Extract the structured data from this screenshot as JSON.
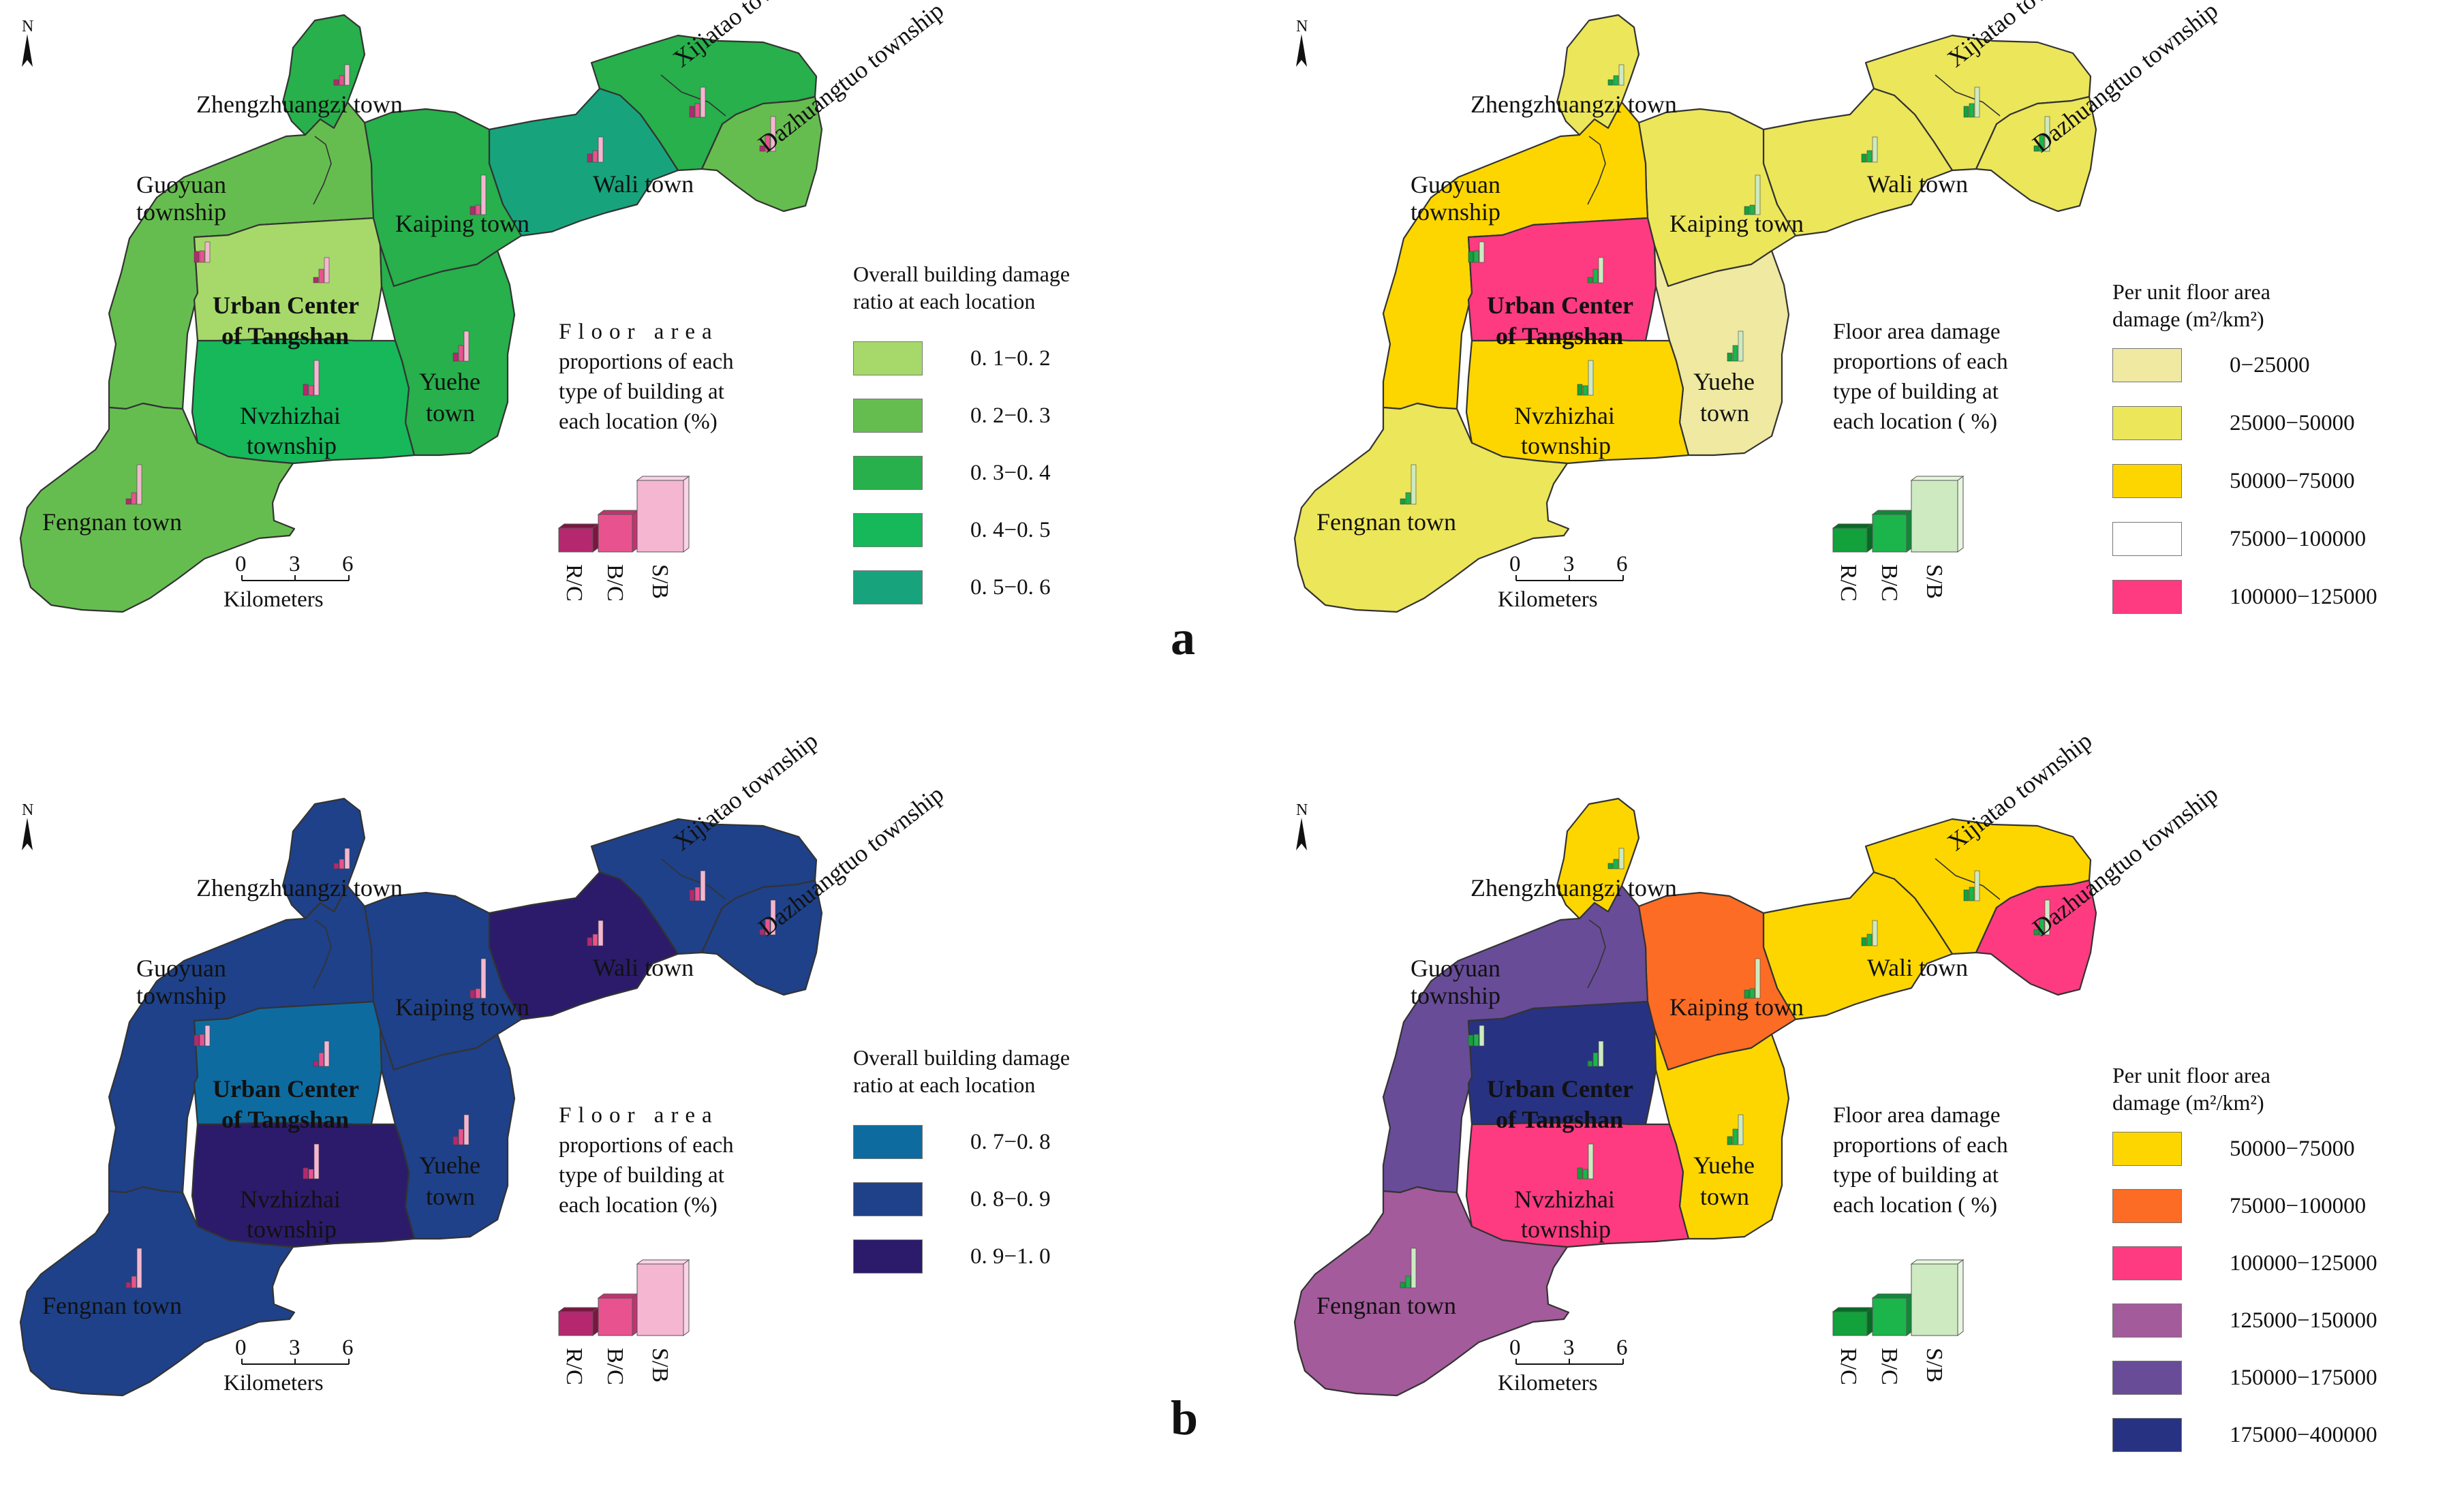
{
  "figure": {
    "panel_letters": [
      "a",
      "b"
    ],
    "north_label": "N",
    "scale": {
      "ticks": [
        "0",
        "3",
        "6"
      ],
      "unit": "Kilometers"
    },
    "place_names": {
      "zhengzhuangzi": "Zhengzhuangzi town",
      "xijiatao": "Xijiatao township",
      "guoyuan_1": "Guoyuan",
      "guoyuan_2": "township",
      "kaiping": "Kaiping town",
      "wali": "Wali town",
      "dazhuangtuo": "Dazhuangtuo township",
      "urban_1": "Urban Center",
      "urban_2": "of Tangshan",
      "yuehe_1": "Yuehe",
      "yuehe_2": "town",
      "nvzhizhai_1": "Nvzhizhai",
      "nvzhizhai_2": "township",
      "fengnan": "Fengnan town"
    },
    "bar_labels": [
      "R/C",
      "B/C",
      "S/B"
    ]
  },
  "panels": {
    "a_left": {
      "legend_title": [
        "Overall building damage",
        "ratio at each location"
      ],
      "bar_title": [
        "Floor area",
        "proportions of each",
        "type of building at",
        "each location (%)"
      ],
      "legend": [
        {
          "label": "0. 1−0. 2",
          "color": "#a6d96a"
        },
        {
          "label": "0. 2−0. 3",
          "color": "#66bd4f"
        },
        {
          "label": "0. 3−0. 4",
          "color": "#27b04b"
        },
        {
          "label": "0. 4−0. 5",
          "color": "#16b85a"
        },
        {
          "label": "0. 5−0. 6",
          "color": "#17a47c"
        }
      ],
      "fills": {
        "zhengzhuangzi": "#27b04b",
        "xijiatao": "#27b04b",
        "dazhuangtuo": "#66bd4f",
        "wali": "#17a47c",
        "kaiping": "#27b04b",
        "guoyuan": "#66bd4f",
        "urban": "#a6d96a",
        "yuehe": "#27b04b",
        "nvzhizhai": "#16b85a",
        "fengnan": "#66bd4f"
      }
    },
    "a_right": {
      "legend_title": [
        "Per unit floor area",
        "damage (m²/km²)"
      ],
      "bar_title": [
        "Floor area damage",
        "proportions of each",
        "type of building at",
        "each location ( %)"
      ],
      "legend": [
        {
          "label": "0−25000",
          "color": "#efe9a1"
        },
        {
          "label": "25000−50000",
          "color": "#ece65a"
        },
        {
          "label": "50000−75000",
          "color": "#fdd600"
        },
        {
          "label": "75000−100000",
          "color": "#ffffff"
        },
        {
          "label": "100000−125000",
          "color": "#fe3b80"
        }
      ],
      "fills": {
        "zhengzhuangzi": "#ece65a",
        "xijiatao": "#ece65a",
        "dazhuangtuo": "#ece65a",
        "wali": "#ece65a",
        "kaiping": "#ece65a",
        "guoyuan": "#fdd600",
        "urban": "#fe3b80",
        "yuehe": "#efe9a1",
        "nvzhizhai": "#fdd600",
        "fengnan": "#ece65a"
      }
    },
    "b_left": {
      "legend_title": [
        "Overall building damage",
        "ratio at each location"
      ],
      "bar_title": [
        "Floor area",
        "proportions of each",
        "type of building at",
        "each location (%)"
      ],
      "legend": [
        {
          "label": "0. 7−0. 8",
          "color": "#0e6ba0"
        },
        {
          "label": "0. 8−0. 9",
          "color": "#1e4189"
        },
        {
          "label": "0. 9−1. 0",
          "color": "#2c1b6b"
        }
      ],
      "fills": {
        "zhengzhuangzi": "#1e4189",
        "xijiatao": "#1e4189",
        "dazhuangtuo": "#1e4189",
        "wali": "#2c1b6b",
        "kaiping": "#1e4189",
        "guoyuan": "#1e4189",
        "urban": "#0e6ba0",
        "yuehe": "#1e4189",
        "nvzhizhai": "#2c1b6b",
        "fengnan": "#1e4189"
      }
    },
    "b_right": {
      "legend_title": [
        "Per unit floor area",
        "damage (m²/km²)"
      ],
      "bar_title": [
        "Floor area damage",
        "proportions of each",
        "type of building at",
        "each location ( %)"
      ],
      "legend": [
        {
          "label": "50000−75000",
          "color": "#fdd600"
        },
        {
          "label": "75000−100000",
          "color": "#fc6c24"
        },
        {
          "label": "100000−125000",
          "color": "#fe3b80"
        },
        {
          "label": "125000−150000",
          "color": "#a35b9b"
        },
        {
          "label": "150000−175000",
          "color": "#684c98"
        },
        {
          "label": "175000−400000",
          "color": "#283282"
        }
      ],
      "fills": {
        "zhengzhuangzi": "#fdd600",
        "xijiatao": "#fdd600",
        "dazhuangtuo": "#fe3b80",
        "wali": "#fdd600",
        "kaiping": "#fc6c24",
        "guoyuan": "#684c98",
        "urban": "#283282",
        "yuehe": "#fdd600",
        "nvzhizhai": "#fe3b80",
        "fengnan": "#a35b9b"
      }
    }
  }
}
